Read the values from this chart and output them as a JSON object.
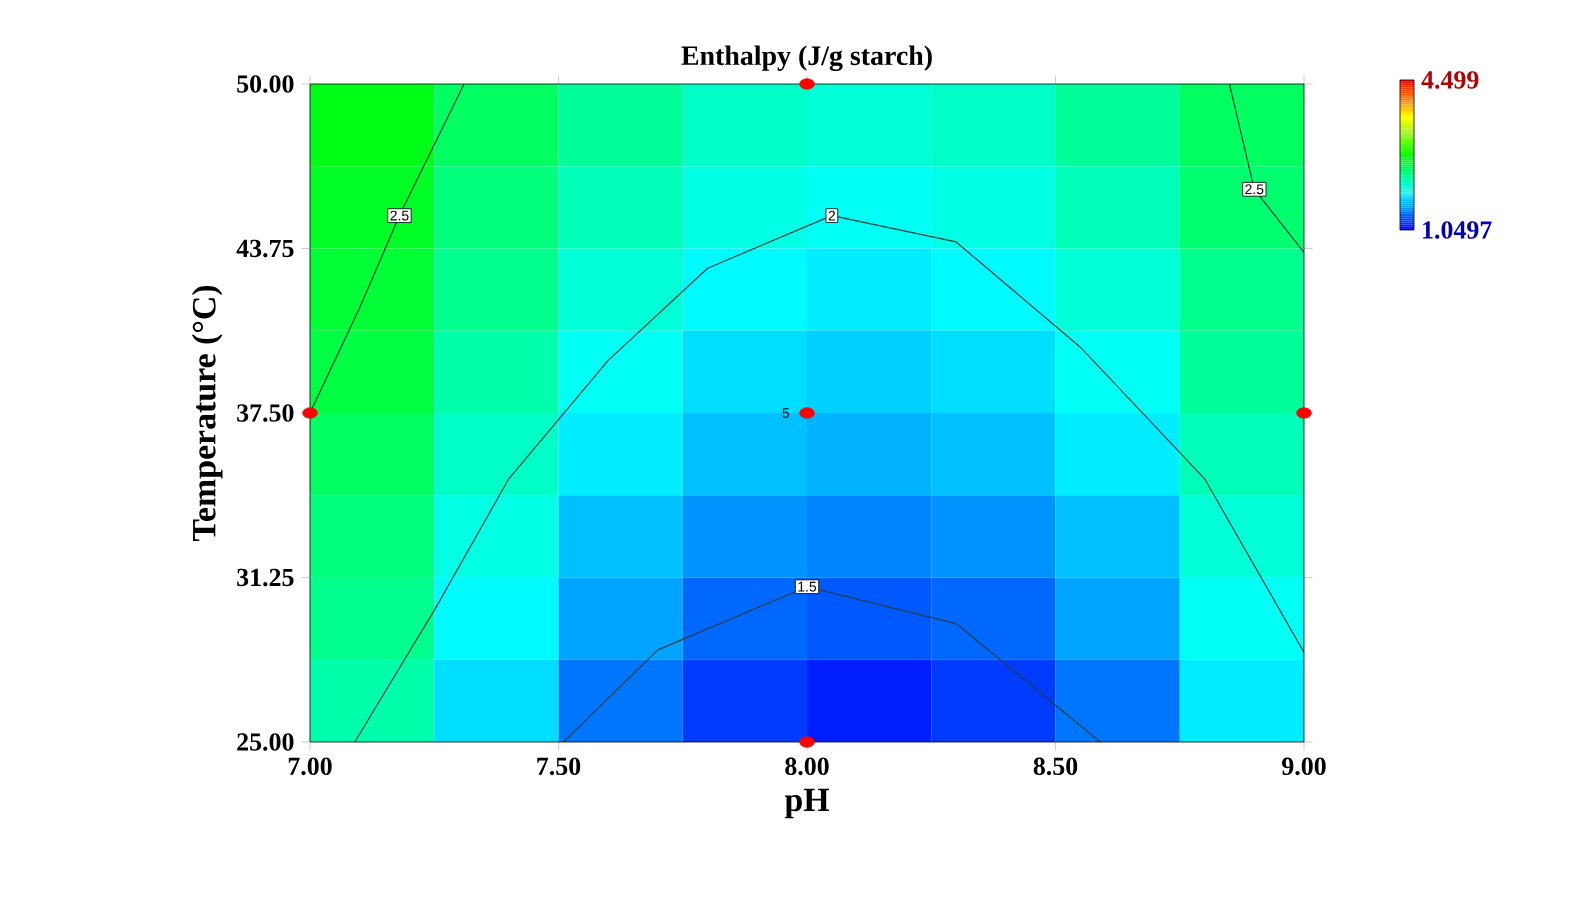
{
  "chart_data": {
    "type": "heatmap",
    "title": "Enthalpy (J/g starch)",
    "xlabel": "pH",
    "ylabel": "Temperature  (°C)",
    "xlim": [
      7,
      9
    ],
    "ylim": [
      25,
      50
    ],
    "xticks": [
      {
        "value": 7,
        "label": "7.00"
      },
      {
        "value": 7.5,
        "label": "7.50"
      },
      {
        "value": 8,
        "label": "8.00"
      },
      {
        "value": 8.5,
        "label": "8.50"
      },
      {
        "value": 9,
        "label": "9.00"
      }
    ],
    "yticks": [
      {
        "value": 25,
        "label": "25.00"
      },
      {
        "value": 31.25,
        "label": "31.25"
      },
      {
        "value": 37.5,
        "label": "37.50"
      },
      {
        "value": 43.75,
        "label": "43.75"
      },
      {
        "value": 50,
        "label": "50.00"
      }
    ],
    "x": [
      7.125,
      7.375,
      7.625,
      7.875,
      8.125,
      8.375,
      8.625,
      8.875
    ],
    "y": [
      48.4375,
      45.3125,
      42.1875,
      39.0625,
      35.9375,
      32.8125,
      29.6875,
      26.5625
    ],
    "cells": [
      [
        2.7,
        2.45,
        2.25,
        2.1,
        2.05,
        2.1,
        2.25,
        2.45
      ],
      [
        2.65,
        2.35,
        2.15,
        2.0,
        1.95,
        2.0,
        2.15,
        2.4
      ],
      [
        2.6,
        2.3,
        2.05,
        1.9,
        1.85,
        1.9,
        2.05,
        2.3
      ],
      [
        2.55,
        2.2,
        1.95,
        1.8,
        1.75,
        1.8,
        1.95,
        2.25
      ],
      [
        2.45,
        2.1,
        1.85,
        1.7,
        1.65,
        1.7,
        1.85,
        2.15
      ],
      [
        2.35,
        2.0,
        1.7,
        1.55,
        1.5,
        1.55,
        1.7,
        2.05
      ],
      [
        2.3,
        1.9,
        1.6,
        1.4,
        1.35,
        1.4,
        1.6,
        1.95
      ],
      [
        2.2,
        1.8,
        1.45,
        1.25,
        1.15,
        1.25,
        1.45,
        1.85
      ]
    ],
    "clim": [
      1.0497,
      4.499
    ],
    "cticks": [
      1.0497,
      4.499
    ],
    "series": [
      {
        "type": "line",
        "color": "#1f3f3f",
        "x": [
          7.0,
          7.1,
          7.18,
          7.31,
          null,
          8.85,
          8.9,
          9.0
        ],
        "values": [
          37.5,
          41.5,
          45,
          50,
          null,
          50,
          46,
          43.6
        ]
      },
      {
        "type": "line",
        "color": "#1f3f3f",
        "x": [
          7.09,
          7.25,
          7.4,
          7.6,
          7.8,
          8.05,
          8.3,
          8.55,
          8.8,
          9.0
        ],
        "values": [
          25,
          30,
          35,
          39.5,
          43,
          45,
          44,
          40,
          35,
          28.4
        ]
      },
      {
        "type": "line",
        "color": "#1f3f3f",
        "x": [
          7.51,
          7.7,
          8.0,
          8.3,
          8.59
        ],
        "values": [
          25,
          28.5,
          30.9,
          29.5,
          25
        ]
      },
      {
        "type": "scatter",
        "color": "#ff0000",
        "x": [
          7,
          8,
          8,
          8,
          9
        ],
        "values": [
          37.5,
          50,
          37.5,
          25,
          37.5
        ]
      }
    ],
    "annotations": [
      {
        "text": "2.5",
        "x": 7.18,
        "y": 45
      },
      {
        "text": "2.5",
        "x": 8.9,
        "y": 46
      },
      {
        "text": "2",
        "x": 8.05,
        "y": 45
      },
      {
        "text": "1.5",
        "x": 8.0,
        "y": 30.9
      },
      {
        "text": "5",
        "x": 8,
        "y": 37.5
      }
    ]
  }
}
